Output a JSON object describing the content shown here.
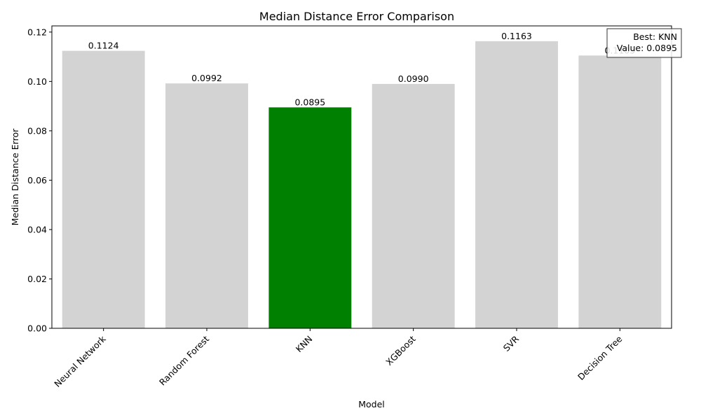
{
  "chart_data": {
    "type": "bar",
    "title": "Median Distance Error Comparison",
    "xlabel": "Model",
    "ylabel": "Median Distance Error",
    "categories": [
      "Neural Network",
      "Random Forest",
      "KNN",
      "XGBoost",
      "SVR",
      "Decision Tree"
    ],
    "values": [
      0.1124,
      0.0992,
      0.0895,
      0.099,
      0.1163,
      0.1105
    ],
    "value_labels": [
      "0.1124",
      "0.0992",
      "0.0895",
      "0.0990",
      "0.1163",
      "0.1105"
    ],
    "ylim": [
      0,
      0.1225
    ],
    "yticks": [
      0.0,
      0.02,
      0.04,
      0.06,
      0.08,
      0.1,
      0.12
    ],
    "ytick_labels": [
      "0.00",
      "0.02",
      "0.04",
      "0.06",
      "0.08",
      "0.10",
      "0.12"
    ],
    "bar_color": "#d3d3d3",
    "highlight_color": "#008000",
    "highlight_index": 2,
    "grid": false,
    "annotation": {
      "lines": [
        "Best: KNN",
        "Value: 0.0895"
      ],
      "placement": "top-right"
    }
  }
}
